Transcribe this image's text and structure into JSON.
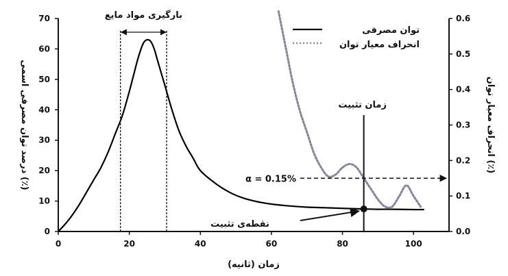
{
  "chart_data": {
    "type": "line",
    "xlabel": "زمان (ثانیه)",
    "ylabel_left": "درصد توان مصرفی اسمی (٪)",
    "ylabel_right": "انحراف معیار توان (٪)",
    "xlim": [
      0,
      110
    ],
    "ylim_left": [
      0,
      70
    ],
    "ylim_right": [
      0,
      0.6
    ],
    "x_ticks": [
      0,
      20,
      40,
      60,
      80,
      100
    ],
    "y_left_ticks": [
      0,
      10,
      20,
      30,
      40,
      50,
      60,
      70
    ],
    "y_right_ticks": [
      "0.0",
      "0.1",
      "0.2",
      "0.3",
      "0.4",
      "0.5",
      "0.6"
    ],
    "legend_position": "top-right",
    "series": [
      {
        "name": "توان مصرفی",
        "axis": "left",
        "style": "solid",
        "color": "#000000",
        "x": [
          0,
          2,
          4,
          6,
          8,
          10,
          12,
          14,
          16,
          18,
          20,
          22,
          23,
          24,
          25,
          26,
          27,
          28,
          30,
          32,
          34,
          36,
          38,
          40,
          44,
          48,
          52,
          56,
          60,
          65,
          70,
          75,
          80,
          86,
          90,
          95,
          100,
          103
        ],
        "values": [
          0,
          2.5,
          5.5,
          9,
          13,
          17,
          21,
          26,
          32,
          38,
          46,
          55,
          59,
          62,
          63,
          62.5,
          60,
          56,
          48,
          40,
          33,
          28,
          24,
          20,
          16,
          13,
          11,
          9.8,
          9,
          8.4,
          8,
          7.8,
          7.6,
          7.4,
          7.3,
          7.3,
          7.2,
          7.2
        ]
      },
      {
        "name": "انحراف معیار توان",
        "axis": "right",
        "style": "dotted",
        "color": "#8a86a0",
        "x": [
          62,
          64,
          66,
          68,
          70,
          72,
          74,
          76,
          78,
          80,
          82,
          84,
          86,
          88,
          90,
          92,
          94,
          96,
          98,
          100,
          102
        ],
        "values": [
          0.62,
          0.52,
          0.42,
          0.34,
          0.28,
          0.22,
          0.18,
          0.155,
          0.16,
          0.18,
          0.19,
          0.18,
          0.15,
          0.12,
          0.09,
          0.07,
          0.07,
          0.1,
          0.13,
          0.1,
          0.07
        ]
      }
    ],
    "annotations": {
      "loading_label": "بارگیری مواد مایع",
      "loading_range_x": [
        17.5,
        30.5
      ],
      "stabilization_time_label": "زمان تثبیت",
      "stabilization_time_x": 86,
      "stabilization_point_label": "نقطه‌ی تثبیت",
      "stabilization_point_y": 7.4,
      "alpha_label": "α = 0.15%",
      "alpha_value": 0.15
    }
  }
}
